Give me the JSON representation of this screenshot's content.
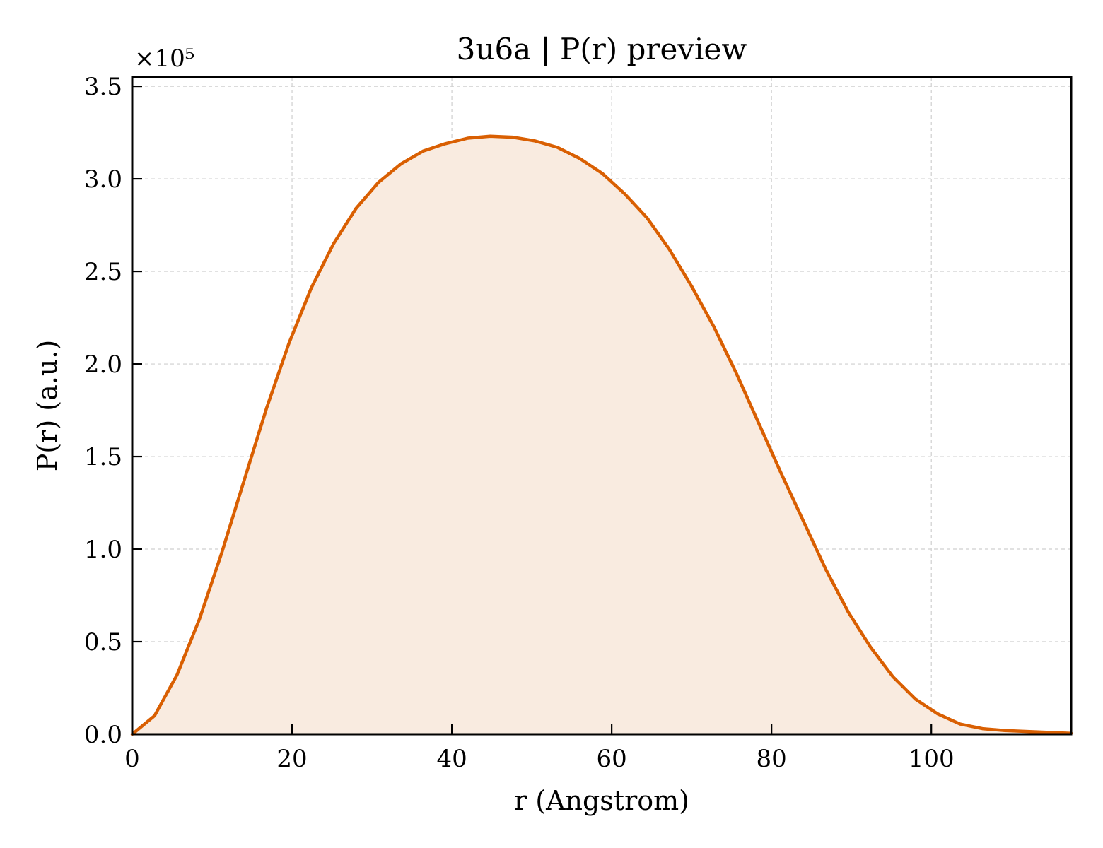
{
  "chart_data": {
    "type": "area",
    "title": "3u6a | P(r) preview",
    "xlabel": "r (Angstrom)",
    "ylabel": "P(r) (a.u.)",
    "y_multiplier": "×10⁵",
    "xlim": [
      0,
      117.5
    ],
    "ylim": [
      0,
      3.55
    ],
    "xticks": [
      0,
      20,
      40,
      60,
      80,
      100
    ],
    "yticks": [
      0.0,
      0.5,
      1.0,
      1.5,
      2.0,
      2.5,
      3.0,
      3.5
    ],
    "xtick_labels": [
      "0",
      "20",
      "40",
      "60",
      "80",
      "100"
    ],
    "ytick_labels": [
      "0.0",
      "0.5",
      "1.0",
      "1.5",
      "2.0",
      "2.5",
      "3.0",
      "3.5"
    ],
    "grid": true,
    "line_color": "#d95f02",
    "fill_color": "#f9ebe0",
    "x": [
      0,
      2.8,
      5.6,
      8.4,
      11.2,
      14.0,
      16.8,
      19.6,
      22.4,
      25.2,
      28.0,
      30.8,
      33.6,
      36.4,
      39.2,
      42.0,
      44.8,
      47.6,
      50.4,
      53.2,
      56.0,
      58.8,
      61.6,
      64.4,
      67.2,
      70.0,
      72.8,
      75.6,
      78.4,
      81.2,
      84.0,
      86.8,
      89.6,
      92.4,
      95.2,
      98.0,
      100.8,
      103.6,
      106.4,
      109.2,
      117.5
    ],
    "y": [
      0.0,
      0.1,
      0.32,
      0.62,
      0.98,
      1.37,
      1.76,
      2.11,
      2.41,
      2.65,
      2.84,
      2.98,
      3.08,
      3.15,
      3.19,
      3.22,
      3.23,
      3.225,
      3.205,
      3.17,
      3.11,
      3.03,
      2.92,
      2.79,
      2.62,
      2.42,
      2.2,
      1.95,
      1.68,
      1.41,
      1.15,
      0.89,
      0.66,
      0.47,
      0.31,
      0.19,
      0.11,
      0.055,
      0.03,
      0.02,
      0.005
    ]
  }
}
